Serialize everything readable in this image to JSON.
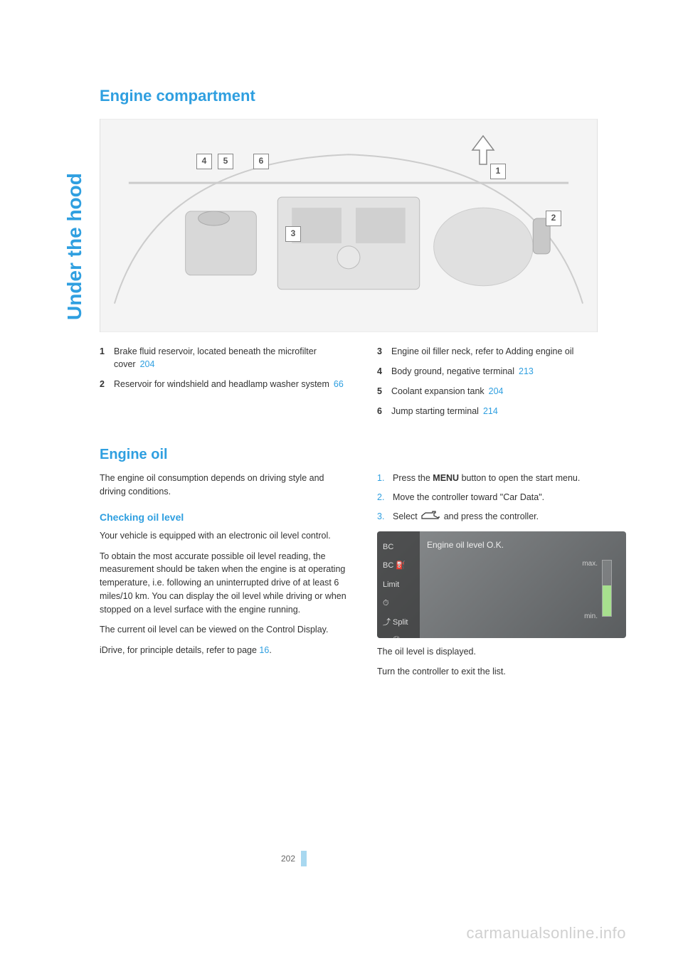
{
  "side_title": "Under the hood",
  "sections": {
    "engine_compartment": {
      "heading": "Engine compartment",
      "legend_left": [
        {
          "num": "1",
          "text": "Brake fluid reservoir, located beneath the microfilter cover",
          "ref": "204"
        },
        {
          "num": "2",
          "text": "Reservoir for windshield and headlamp washer system",
          "ref": "66"
        }
      ],
      "legend_right": [
        {
          "num": "3",
          "text": "Engine oil filler neck, refer to Adding engine oil",
          "ref": ""
        },
        {
          "num": "4",
          "text": "Body ground, negative terminal",
          "ref": "213"
        },
        {
          "num": "5",
          "text": "Coolant expansion tank",
          "ref": "204"
        },
        {
          "num": "6",
          "text": "Jump starting terminal",
          "ref": "214"
        }
      ],
      "callouts": [
        "1",
        "2",
        "3",
        "4",
        "5",
        "6"
      ]
    },
    "engine_oil": {
      "heading": "Engine oil",
      "intro": "The engine oil consumption depends on driving style and driving conditions.",
      "subheading": "Checking oil level",
      "p1": "Your vehicle is equipped with an electronic oil level control.",
      "p2": "To obtain the most accurate possible oil level reading, the measurement should be taken when the engine is at operating temperature, i.e. following an uninterrupted drive of at least 6 miles/10 km. You can display the oil level while driving or when stopped on a level surface with the engine running.",
      "p3": "The current oil level can be viewed on the Control Display.",
      "p4_pre": "iDrive, for principle details, refer to page ",
      "p4_ref": "16",
      "p4_post": ".",
      "steps": [
        {
          "num": "1.",
          "pre": "Press the ",
          "bold": "MENU",
          "post": " button to open the start menu."
        },
        {
          "num": "2.",
          "pre": "Move the controller toward \"Car Data\".",
          "bold": "",
          "post": ""
        },
        {
          "num": "3.",
          "pre": "Select ",
          "bold": "",
          "post": " and press the controller.",
          "icon": true
        }
      ],
      "screenshot": {
        "title": "Engine oil level O.K.",
        "sidebar": [
          "BC",
          "BC ⛽",
          "Limit",
          "⏱",
          "⤴ Split",
          "✓ 🛢"
        ],
        "max": "max.",
        "min": "min."
      },
      "after1": "The oil level is displayed.",
      "after2": "Turn the controller to exit the list."
    }
  },
  "page_number": "202",
  "watermark": "carmanualsonline.info"
}
